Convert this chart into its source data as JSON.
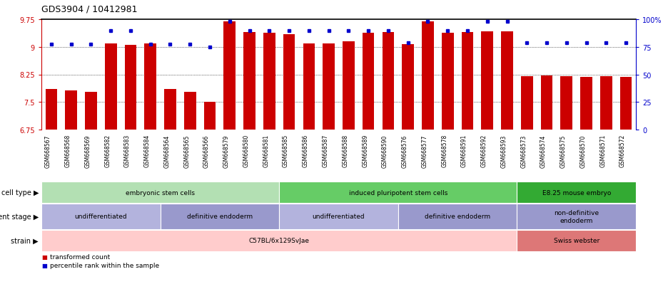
{
  "title": "GDS3904 / 10412981",
  "samples": [
    "GSM668567",
    "GSM668568",
    "GSM668569",
    "GSM668582",
    "GSM668583",
    "GSM668584",
    "GSM668564",
    "GSM668565",
    "GSM668566",
    "GSM668579",
    "GSM668580",
    "GSM668581",
    "GSM668585",
    "GSM668586",
    "GSM668587",
    "GSM668588",
    "GSM668589",
    "GSM668590",
    "GSM668576",
    "GSM668577",
    "GSM668578",
    "GSM668591",
    "GSM668592",
    "GSM668593",
    "GSM668573",
    "GSM668574",
    "GSM668575",
    "GSM668570",
    "GSM668571",
    "GSM668572"
  ],
  "bar_values": [
    7.85,
    7.82,
    7.78,
    9.1,
    9.06,
    9.1,
    7.85,
    7.78,
    7.5,
    9.7,
    9.4,
    9.38,
    9.35,
    9.1,
    9.1,
    9.15,
    9.38,
    9.4,
    9.08,
    9.7,
    9.38,
    9.4,
    9.43,
    9.43,
    8.2,
    8.23,
    8.2,
    8.18,
    8.2,
    8.18
  ],
  "percentile_values": [
    9.08,
    9.08,
    9.08,
    9.45,
    9.45,
    9.08,
    9.08,
    9.08,
    9.0,
    9.7,
    9.45,
    9.45,
    9.45,
    9.45,
    9.45,
    9.45,
    9.45,
    9.45,
    9.12,
    9.7,
    9.45,
    9.45,
    9.7,
    9.7,
    9.12,
    9.12,
    9.12,
    9.12,
    9.12,
    9.12
  ],
  "ylim_left": [
    6.75,
    9.75
  ],
  "yticks_left": [
    6.75,
    7.5,
    8.25,
    9.0,
    9.75
  ],
  "ytick_labels_left": [
    "6.75",
    "7.5",
    "8.25",
    "9",
    "9.75"
  ],
  "ylim_right": [
    0,
    100
  ],
  "yticks_right": [
    0,
    25,
    50,
    75,
    100
  ],
  "ytick_labels_right": [
    "0",
    "25",
    "50",
    "75",
    "100%"
  ],
  "bar_color": "#cc0000",
  "dot_color": "#0000cc",
  "cell_type_groups": [
    {
      "label": "embryonic stem cells",
      "start": 0,
      "end": 12,
      "color": "#b3e0b3"
    },
    {
      "label": "induced pluripotent stem cells",
      "start": 12,
      "end": 24,
      "color": "#66cc66"
    },
    {
      "label": "E8.25 mouse embryo",
      "start": 24,
      "end": 30,
      "color": "#33aa33"
    }
  ],
  "dev_stage_groups": [
    {
      "label": "undifferentiated",
      "start": 0,
      "end": 6,
      "color": "#b3b3dd"
    },
    {
      "label": "definitive endoderm",
      "start": 6,
      "end": 12,
      "color": "#9999cc"
    },
    {
      "label": "undifferentiated",
      "start": 12,
      "end": 18,
      "color": "#b3b3dd"
    },
    {
      "label": "definitive endoderm",
      "start": 18,
      "end": 24,
      "color": "#9999cc"
    },
    {
      "label": "non-definitive\nendoderm",
      "start": 24,
      "end": 30,
      "color": "#9999cc"
    }
  ],
  "strain_groups": [
    {
      "label": "C57BL/6x129SvJae",
      "start": 0,
      "end": 24,
      "color": "#ffcccc"
    },
    {
      "label": "Swiss webster",
      "start": 24,
      "end": 30,
      "color": "#dd7777"
    }
  ],
  "legend_items": [
    {
      "label": "transformed count",
      "color": "#cc0000"
    },
    {
      "label": "percentile rank within the sample",
      "color": "#0000cc"
    }
  ]
}
